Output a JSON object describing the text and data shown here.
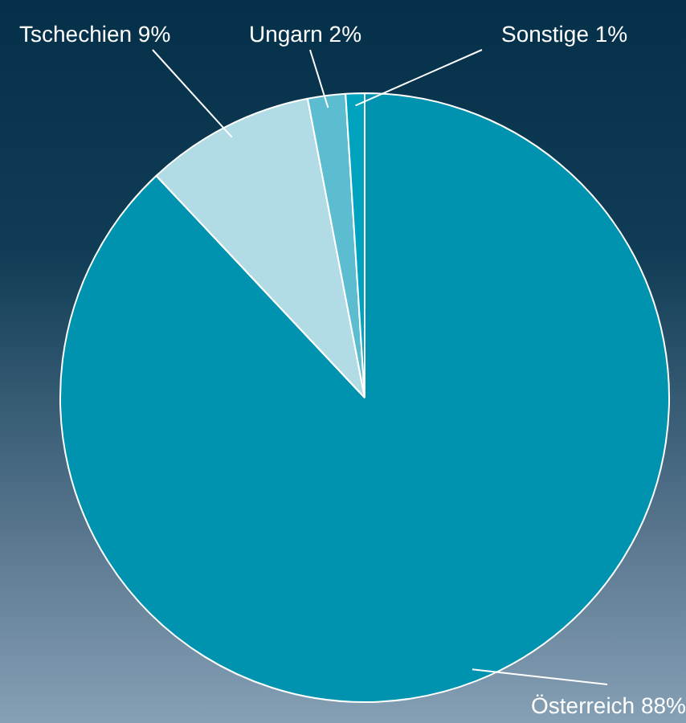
{
  "chart_data": {
    "type": "pie",
    "categories": [
      "Österreich",
      "Tschechien",
      "Ungarn",
      "Sonstige"
    ],
    "values": [
      88,
      9,
      2,
      1
    ],
    "value_labels": [
      "88%",
      "9%",
      "2%",
      "1%"
    ],
    "colors": [
      "#0093b0",
      "#b2dce5",
      "#5dbdd0",
      "#00a3be"
    ],
    "legend": false
  }
}
